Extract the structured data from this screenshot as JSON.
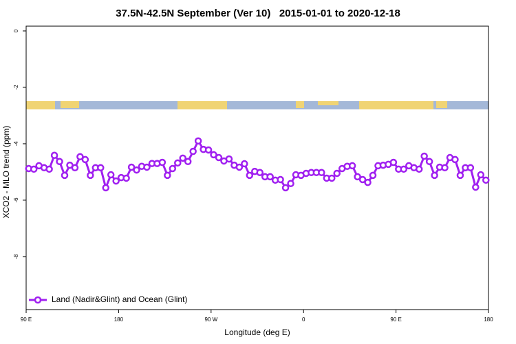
{
  "chart_data": {
    "type": "line",
    "title": "37.5N-42.5N September (Ver 10)   2015-01-01 to 2020-12-18",
    "x_label": "Longitude (deg E)",
    "y_label": "XCO2 - MLO trend (ppm)",
    "x": [
      92.5,
      97.5,
      102.5,
      107.5,
      112.5,
      117.5,
      122.5,
      127.5,
      132.5,
      137.5,
      142.5,
      147.5,
      152.5,
      157.5,
      162.5,
      167.5,
      172.5,
      177.5,
      182.5,
      187.5,
      192.5,
      197.5,
      202.5,
      207.5,
      212.5,
      217.5,
      222.5,
      227.5,
      232.5,
      237.5,
      242.5,
      247.5,
      252.5,
      257.5,
      262.5,
      267.5,
      272.5,
      277.5,
      282.5,
      287.5,
      292.5,
      297.5,
      302.5,
      307.5,
      312.5,
      317.5,
      322.5,
      327.5,
      332.5,
      337.5,
      342.5,
      347.5,
      352.5,
      357.5,
      362.5,
      367.5,
      372.5,
      377.5,
      382.5,
      387.5,
      392.5,
      397.5,
      402.5,
      407.5,
      412.5,
      417.5,
      422.5,
      427.5,
      432.5,
      437.5,
      442.5,
      447.5,
      452.5,
      457.5,
      462.5,
      467.5,
      472.5,
      477.5,
      482.5,
      487.5,
      492.5,
      497.5,
      502.5,
      507.5,
      512.5,
      517.5,
      522.5,
      527.5,
      532.5,
      537.5
    ],
    "series": [
      {
        "name": "Land (Nadir&Glint) and Ocean (Glint)",
        "color": "#a020f0",
        "values": [
          -4.88,
          -4.9,
          -4.78,
          -4.85,
          -4.9,
          -4.41,
          -4.63,
          -5.12,
          -4.76,
          -4.85,
          -4.46,
          -4.56,
          -5.12,
          -4.85,
          -4.85,
          -5.56,
          -5.1,
          -5.32,
          -5.2,
          -5.22,
          -4.83,
          -4.93,
          -4.8,
          -4.83,
          -4.7,
          -4.7,
          -4.66,
          -5.12,
          -4.88,
          -4.68,
          -4.51,
          -4.63,
          -4.27,
          -3.9,
          -4.2,
          -4.22,
          -4.39,
          -4.49,
          -4.61,
          -4.54,
          -4.76,
          -4.83,
          -4.71,
          -5.12,
          -4.98,
          -5.02,
          -5.17,
          -5.17,
          -5.29,
          -5.27,
          -5.56,
          -5.41,
          -5.1,
          -5.12,
          -5.05,
          -5.02,
          -5.02,
          -5.02,
          -5.22,
          -5.22,
          -5.05,
          -4.88,
          -4.8,
          -4.78,
          -5.17,
          -5.27,
          -5.37,
          -5.12,
          -4.78,
          -4.76,
          -4.73,
          -4.66,
          -4.9,
          -4.9,
          -4.78,
          -4.85,
          -4.9,
          -4.44,
          -4.63,
          -5.12,
          -4.83,
          -4.85,
          -4.49,
          -4.56,
          -5.12,
          -4.85,
          -4.85,
          -5.54,
          -5.1,
          -5.29
        ]
      }
    ],
    "xlim": [
      90,
      540
    ],
    "xticks": [
      {
        "value": 90,
        "label": "90 E"
      },
      180,
      {
        "value": 270,
        "label": "90 W"
      },
      {
        "value": 360,
        "label": "0"
      },
      {
        "value": 450,
        "label": "90 E"
      },
      {
        "value": 540,
        "label": "180"
      }
    ],
    "ylim": [
      -9.88,
      0.17
    ],
    "yticks": [
      0,
      -2,
      -4,
      -6,
      -8
    ],
    "legend": "bottom-left"
  }
}
